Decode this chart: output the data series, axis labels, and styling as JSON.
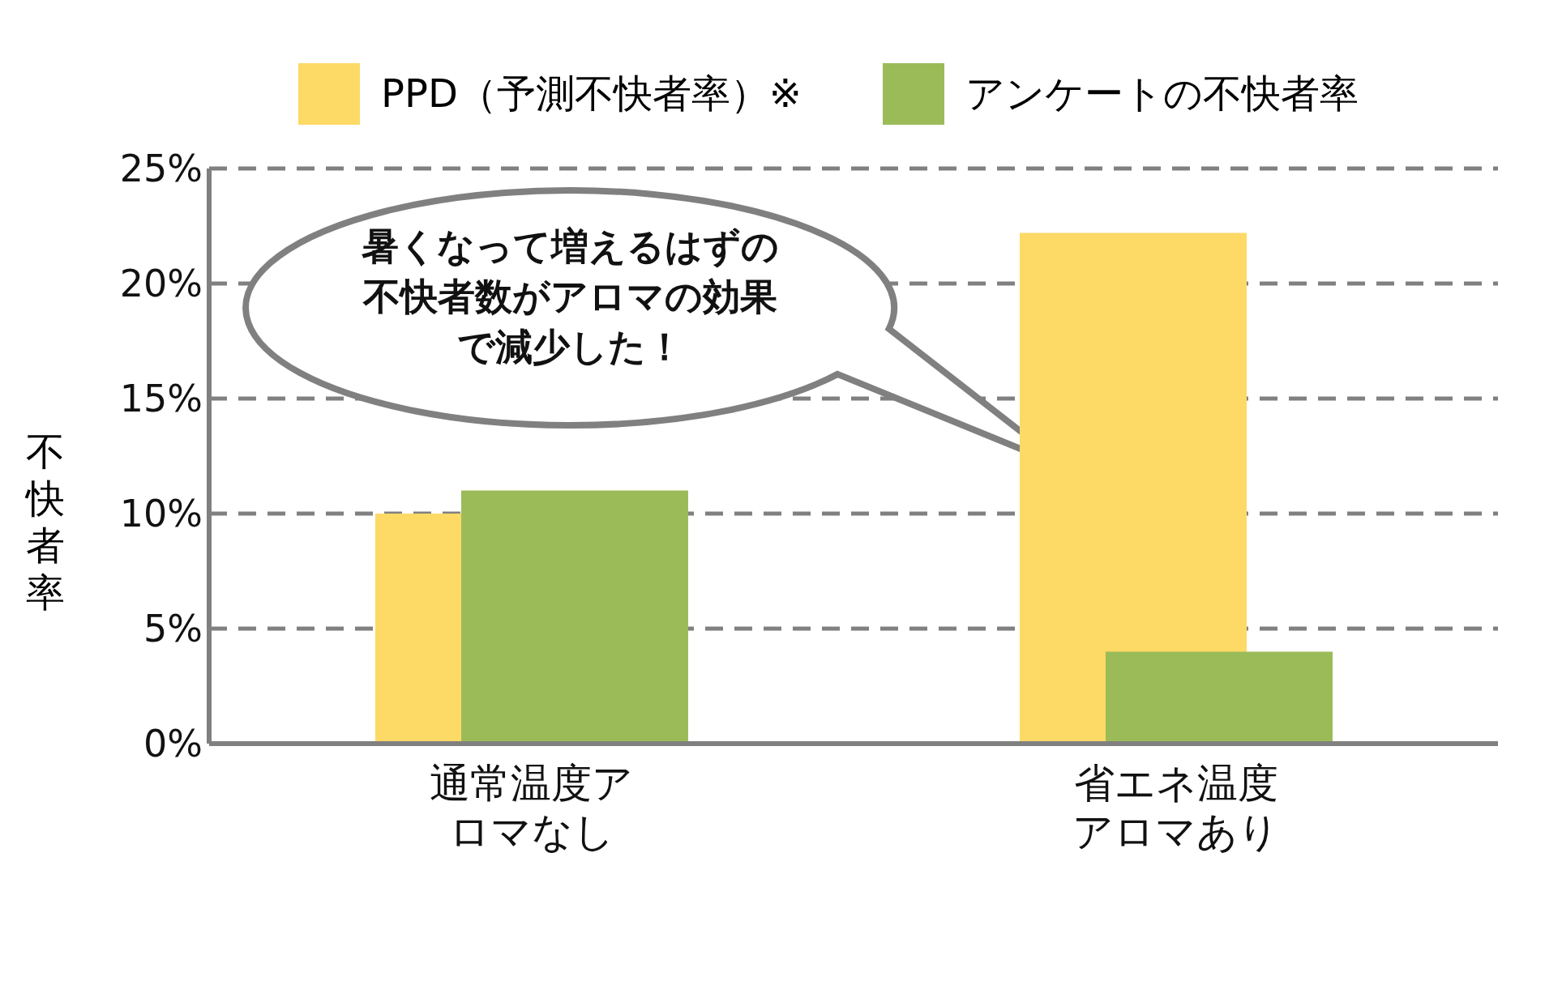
{
  "chart_data": {
    "type": "bar",
    "categories": [
      "通常温度アロマなし",
      "省エネ温度アロマあり"
    ],
    "series": [
      {
        "name": "PPD（予測不快者率）※",
        "color": "#fdd966",
        "values": [
          10,
          22.2
        ]
      },
      {
        "name": "アンケートの不快者率",
        "color": "#9bbb59",
        "values": [
          11,
          4
        ]
      }
    ],
    "ylabel": "不快者率",
    "ylim": [
      0,
      25
    ],
    "yticks": [
      {
        "value": 0,
        "label": "0%"
      },
      {
        "value": 5,
        "label": "5%"
      },
      {
        "value": 10,
        "label": "10%"
      },
      {
        "value": 15,
        "label": "15%"
      },
      {
        "value": 20,
        "label": "20%"
      },
      {
        "value": 25,
        "label": "25%"
      }
    ],
    "grid": "y",
    "legend": "top",
    "annotations": [
      "暑くなって増えるはずの不快者数がアロマの効果で減少した！"
    ]
  }
}
